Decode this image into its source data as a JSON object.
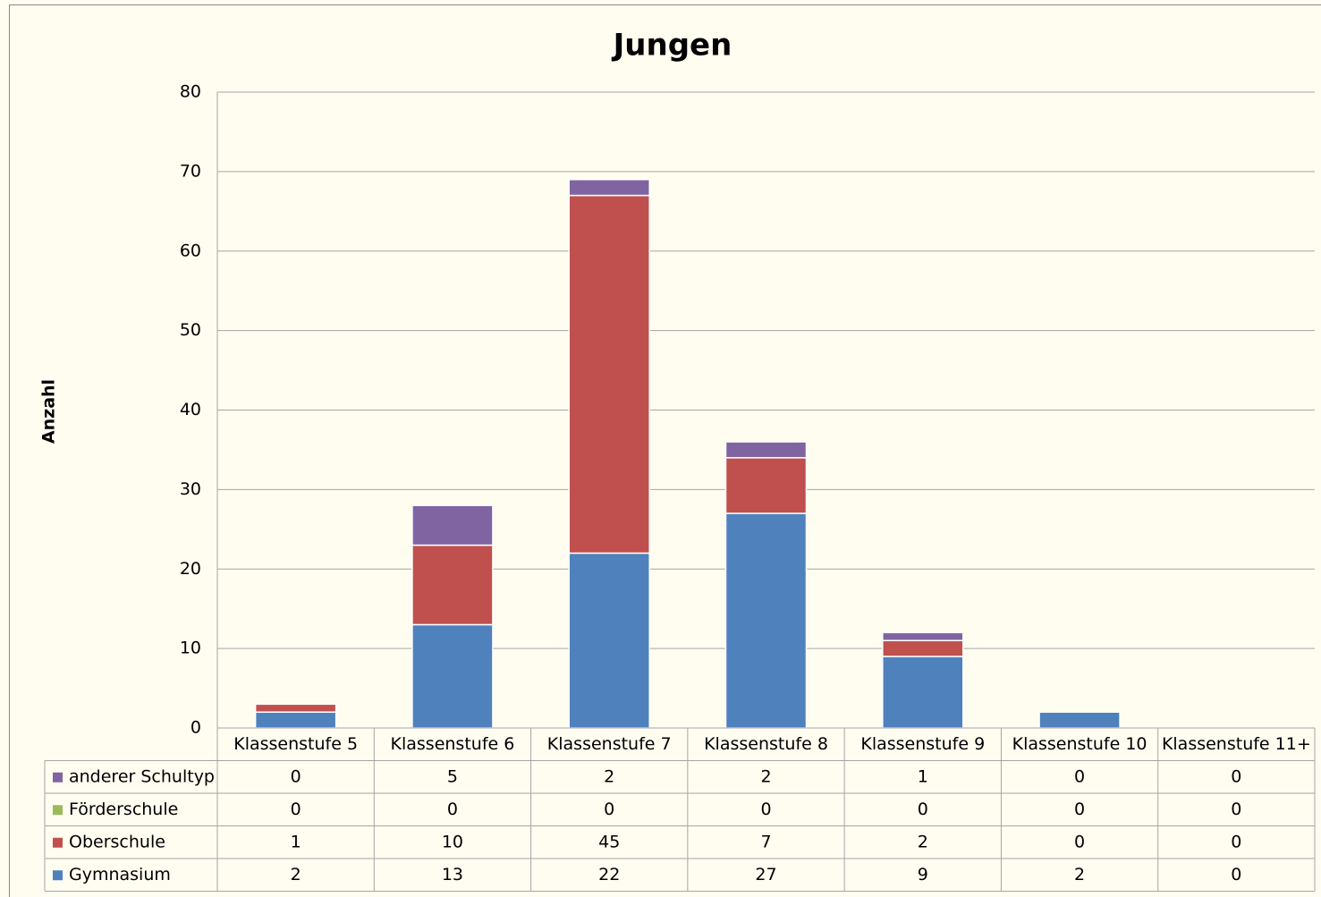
{
  "chart_data": {
    "type": "bar",
    "stacked": true,
    "title": "Jungen",
    "ylabel": "Anzahl",
    "categories": [
      "Klassenstufe 5",
      "Klassenstufe 6",
      "Klassenstufe 7",
      "Klassenstufe 8",
      "Klassenstufe 9",
      "Klassenstufe 10",
      "Klassenstufe 11+"
    ],
    "series": [
      {
        "name": "Gymnasium",
        "color": "#4f81bd",
        "values": [
          2,
          13,
          22,
          27,
          9,
          2,
          0
        ]
      },
      {
        "name": "Oberschule",
        "color": "#c0504d",
        "values": [
          1,
          10,
          45,
          7,
          2,
          0,
          0
        ]
      },
      {
        "name": "Förderschule",
        "color": "#9bbb59",
        "values": [
          0,
          0,
          0,
          0,
          0,
          0,
          0
        ]
      },
      {
        "name": "anderer Schultyp",
        "color": "#8064a2",
        "values": [
          0,
          5,
          2,
          2,
          1,
          0,
          0
        ]
      }
    ],
    "ylim": [
      0,
      80
    ],
    "yticks": [
      0,
      10,
      20,
      30,
      40,
      50,
      60,
      70,
      80
    ],
    "grid": true,
    "data_table": true
  }
}
